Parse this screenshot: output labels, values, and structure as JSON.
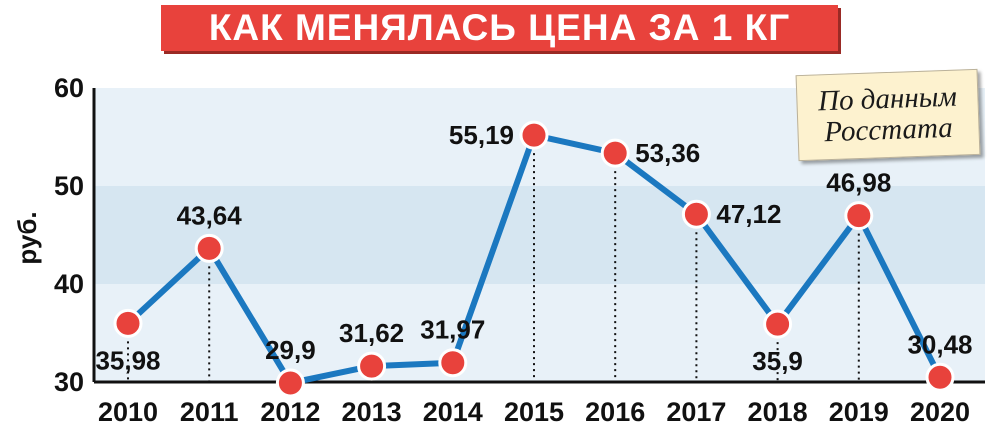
{
  "title": "КАК МЕНЯЛАСЬ ЦЕНА ЗА 1 КГ",
  "source_note": {
    "line1": "По данным",
    "line2": "Росстата"
  },
  "colors": {
    "title_bg": "#e8423c",
    "line": "#1b78c0",
    "marker": "#e8423c",
    "band_dark": "#d6e6f1",
    "band_light": "#e8f1f8",
    "note_bg": "#fdf2cf"
  },
  "chart_data": {
    "type": "line",
    "ylabel": "руб.",
    "ylim": [
      30,
      60
    ],
    "yticks": [
      30,
      40,
      50,
      60
    ],
    "grid": "alternating horizontal bands",
    "categories": [
      "2010",
      "2011",
      "2012",
      "2013",
      "2014",
      "2015",
      "2016",
      "2017",
      "2018",
      "2019",
      "2020"
    ],
    "values": [
      35.98,
      43.64,
      29.9,
      31.62,
      31.97,
      55.19,
      53.36,
      47.12,
      35.9,
      46.98,
      30.48
    ],
    "value_labels": [
      "35,98",
      "43,64",
      "29,9",
      "31,62",
      "31,97",
      "55,19",
      "53,36",
      "47,12",
      "35,9",
      "46,98",
      "30,48"
    ]
  }
}
